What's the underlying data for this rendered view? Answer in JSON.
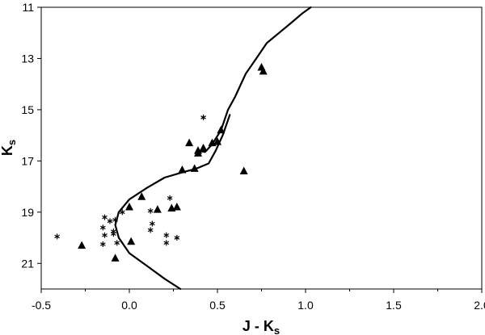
{
  "chart_data": {
    "type": "scatter",
    "title": "",
    "xlabel": {
      "main": "J - K",
      "sub": "s"
    },
    "ylabel": {
      "main": "K",
      "sub": "s"
    },
    "xlim": [
      -0.5,
      2.0
    ],
    "ylim": [
      22,
      11
    ],
    "y_inverted": true,
    "grid": false,
    "legend": "none",
    "x_ticks": [
      "-0.5",
      "0.0",
      "0.5",
      "1.0",
      "1.5",
      "2.0"
    ],
    "x_tick_values": [
      -0.5,
      0.0,
      0.5,
      1.0,
      1.5,
      2.0
    ],
    "y_ticks": [
      "11",
      "13",
      "15",
      "17",
      "19",
      "21"
    ],
    "y_tick_values": [
      11,
      13,
      15,
      17,
      19,
      21
    ],
    "series": [
      {
        "marker": "line",
        "points": [
          [
            0.29,
            22.0
          ],
          [
            0.2,
            21.6
          ],
          [
            0.1,
            21.1
          ],
          [
            0.0,
            20.6
          ],
          [
            -0.06,
            20.0
          ],
          [
            -0.08,
            19.5
          ],
          [
            -0.06,
            19.0
          ],
          [
            0.0,
            18.5
          ],
          [
            0.1,
            18.05
          ],
          [
            0.2,
            17.65
          ],
          [
            0.3,
            17.45
          ],
          [
            0.38,
            17.3
          ],
          [
            0.45,
            17.1
          ],
          [
            0.49,
            16.6
          ],
          [
            0.53,
            16.0
          ],
          [
            0.57,
            15.2
          ]
        ]
      },
      {
        "marker": "line",
        "points": [
          [
            0.39,
            16.6
          ],
          [
            0.43,
            16.65
          ],
          [
            0.47,
            16.35
          ],
          [
            0.52,
            15.8
          ],
          [
            0.56,
            15.0
          ],
          [
            0.6,
            14.5
          ],
          [
            0.66,
            13.6
          ],
          [
            0.72,
            13.0
          ],
          [
            0.78,
            12.4
          ],
          [
            0.85,
            12.0
          ],
          [
            0.92,
            11.6
          ],
          [
            0.98,
            11.25
          ],
          [
            1.03,
            11.0
          ]
        ]
      },
      {
        "marker": "triangle",
        "points": [
          [
            0.75,
            13.35
          ],
          [
            0.76,
            13.5
          ],
          [
            0.34,
            16.3
          ],
          [
            0.39,
            16.6
          ],
          [
            0.39,
            16.7
          ],
          [
            0.42,
            16.5
          ],
          [
            0.47,
            16.3
          ],
          [
            0.5,
            16.25
          ],
          [
            0.52,
            15.8
          ],
          [
            0.3,
            17.35
          ],
          [
            0.37,
            17.3
          ],
          [
            0.65,
            17.4
          ],
          [
            0.07,
            18.4
          ],
          [
            0.0,
            18.8
          ],
          [
            0.16,
            18.9
          ],
          [
            0.24,
            18.85
          ],
          [
            0.27,
            18.8
          ],
          [
            0.01,
            20.15
          ],
          [
            -0.27,
            20.3
          ],
          [
            -0.08,
            20.8
          ]
        ]
      },
      {
        "marker": "asterisk",
        "points": [
          [
            0.42,
            15.3
          ],
          [
            0.23,
            18.45
          ],
          [
            0.12,
            18.95
          ],
          [
            -0.04,
            19.0
          ],
          [
            -0.14,
            19.2
          ],
          [
            -0.11,
            19.35
          ],
          [
            -0.08,
            19.3
          ],
          [
            0.13,
            19.45
          ],
          [
            -0.15,
            19.6
          ],
          [
            -0.09,
            19.75
          ],
          [
            0.12,
            19.7
          ],
          [
            -0.14,
            19.9
          ],
          [
            -0.09,
            19.85
          ],
          [
            0.21,
            19.9
          ],
          [
            0.27,
            20.0
          ],
          [
            -0.41,
            19.95
          ],
          [
            -0.07,
            20.2
          ],
          [
            0.21,
            20.2
          ],
          [
            -0.15,
            20.25
          ]
        ]
      }
    ]
  }
}
